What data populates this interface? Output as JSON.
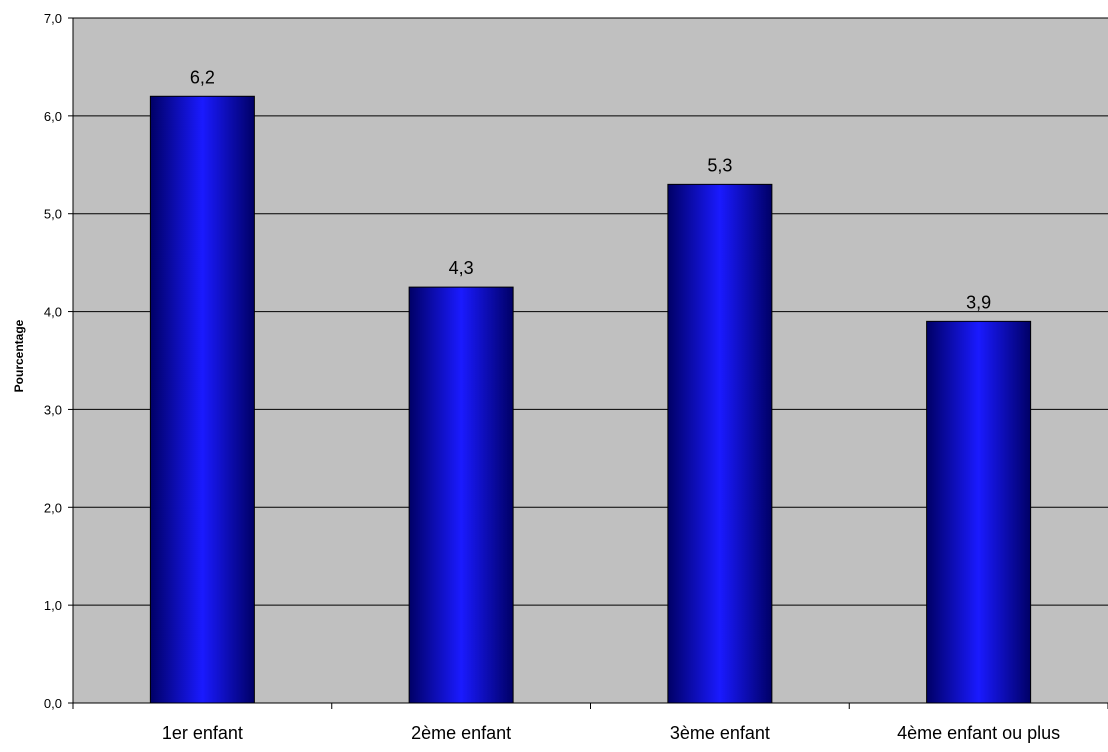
{
  "chart_data": {
    "type": "bar",
    "title": "",
    "xlabel": "",
    "ylabel": "Pourcentage",
    "categories": [
      "1er enfant",
      "2ème enfant",
      "3ème enfant",
      "4ème enfant ou plus"
    ],
    "values": [
      6.2,
      4.25,
      5.3,
      3.9
    ],
    "data_labels": [
      "6,2",
      "4,3",
      "5,3",
      "3,9"
    ],
    "ylim": [
      0,
      7
    ],
    "y_ticks": [
      0,
      1,
      2,
      3,
      4,
      5,
      6,
      7
    ],
    "y_tick_labels": [
      "0,0",
      "1,0",
      "2,0",
      "3,0",
      "4,0",
      "5,0",
      "6,0",
      "7,0"
    ],
    "grid": true,
    "legend": "none",
    "colors": {
      "plot_background": "#c0c0c0",
      "bar_dark": "#000066",
      "bar_light": "#1a1aff",
      "gridline": "#000000"
    }
  }
}
